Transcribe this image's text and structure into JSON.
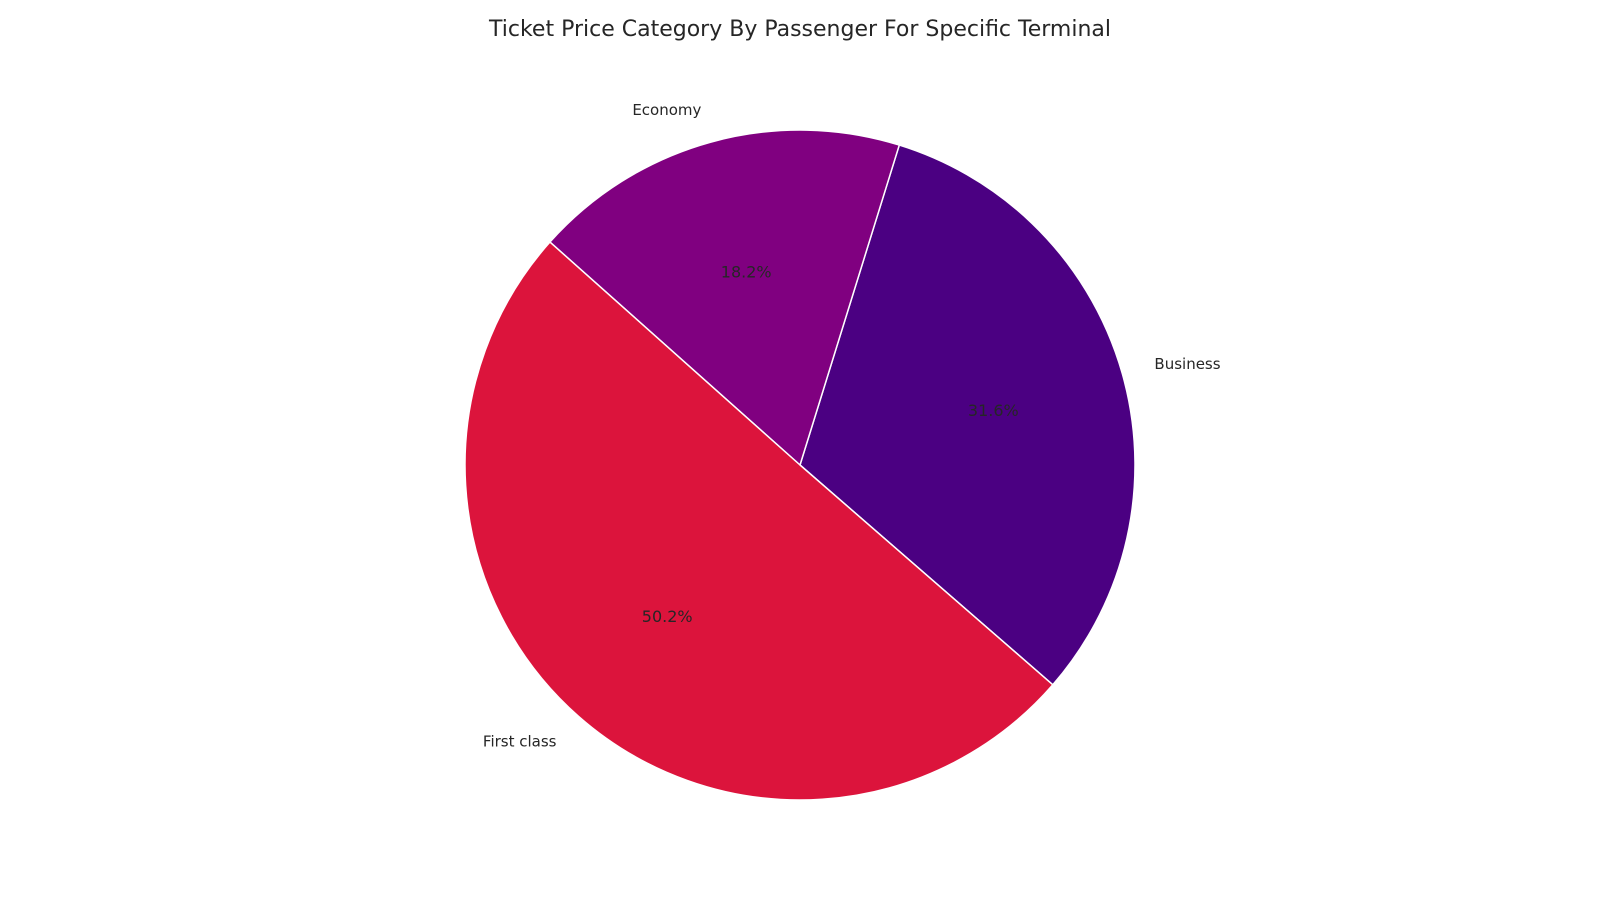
{
  "chart_data": {
    "type": "pie",
    "title": "Ticket Price Category By Passenger For Specific Terminal",
    "categories": [
      "Business",
      "Economy",
      "First class"
    ],
    "values": [
      31.6,
      18.2,
      50.2
    ],
    "value_labels": [
      "31.6%",
      "18.2%",
      "50.2%"
    ],
    "colors": [
      "#4b0082",
      "#800080",
      "#dc143c"
    ],
    "start_angle_deg": -41,
    "direction": "counterclockwise",
    "legend": "none"
  }
}
